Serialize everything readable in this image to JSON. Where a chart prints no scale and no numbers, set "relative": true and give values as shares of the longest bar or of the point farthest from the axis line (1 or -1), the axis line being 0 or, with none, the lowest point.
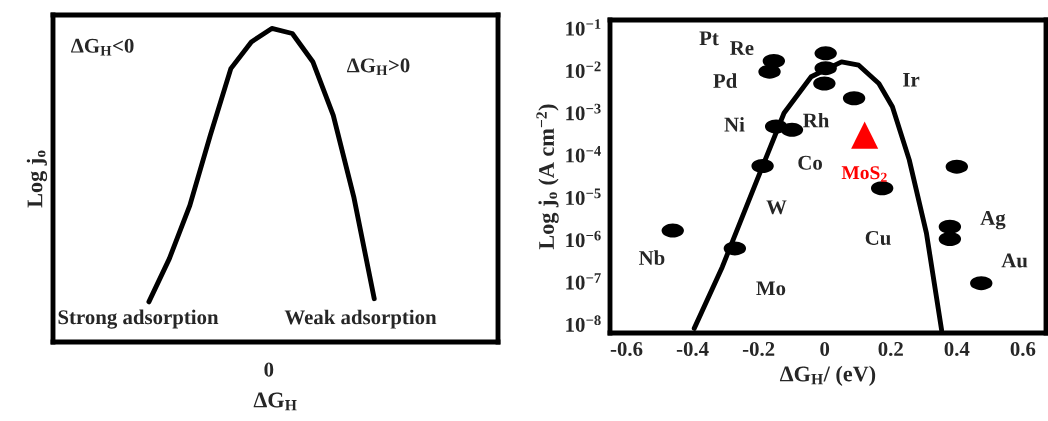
{
  "chart_data": [
    {
      "type": "line",
      "relative": true,
      "xlabel": "ΔG$_{H}$",
      "ylabel": "Log j$_{o}$",
      "categories": [
        null,
        null,
        null,
        null,
        null,
        null,
        null,
        null,
        null,
        null,
        null,
        null
      ],
      "series": [
        {
          "color": "#000000",
          "values": [
            0.128,
            0.266,
            0.436,
            0.66,
            0.872,
            0.957,
            1.0,
            0.984,
            0.894,
            0.723,
            0.463,
            0.138
          ]
        }
      ],
      "annotations": [
        "ΔG$_{H}$<0",
        "ΔG$_{H}$>0",
        "Strong adsorption",
        "Weak adsorption",
        "0"
      ],
      "marker": "none",
      "line_style": "solid",
      "grid": false,
      "legend": false
    },
    {
      "type": "scatter",
      "xlabel": "ΔG$_{H}$/ (eV)",
      "ylabel": "Log j$_{o}$ (A cm$^{−2}$)",
      "log": "y",
      "xlim": [
        -0.65,
        0.67
      ],
      "ylim": [
        6.3e-09,
        0.158
      ],
      "xticks": [
        -0.6,
        -0.4,
        -0.2,
        0,
        0.2,
        0.4,
        0.6
      ],
      "yticks": [
        {
          "value": 1e-08,
          "label": "10$^{−8}$"
        },
        {
          "value": 1e-07,
          "label": "10$^{−7}$"
        },
        {
          "value": 1e-06,
          "label": "10$^{−6}$"
        },
        {
          "value": 1e-05,
          "label": "10$^{−5}$"
        },
        {
          "value": 0.0001,
          "label": "10$^{−4}$"
        },
        {
          "value": 0.001,
          "label": "10$^{−3}$"
        },
        {
          "value": 0.01,
          "label": "10$^{−2}$"
        },
        {
          "value": 0.1,
          "label": "10$^{−1}$"
        }
      ],
      "series": [
        {
          "type": "line",
          "color": "#000000",
          "marker": "none",
          "x": [
            -0.395,
            -0.31,
            -0.205,
            -0.123,
            -0.041,
            0.051,
            0.103,
            0.164,
            0.205,
            0.256,
            0.308,
            0.354
          ],
          "values": [
            8.1e-09,
            2.3e-07,
            2.6e-05,
            0.001,
            0.0072,
            0.0162,
            0.0135,
            0.005,
            0.0014,
            7.8e-05,
            1.45e-06,
            7.4e-09
          ]
        },
        {
          "type": "scatter",
          "color": "#000000",
          "marker": "circle",
          "x": [
            0.003,
            0.003,
            -0.001,
            -0.154,
            -0.167,
            0.089,
            -0.147,
            -0.099,
            -0.188,
            -0.46,
            -0.272,
            0.174,
            0.379,
            0.379,
            0.4,
            0.474
          ],
          "values": [
            0.0257,
            0.0115,
            0.005,
            0.017,
            0.0095,
            0.00224,
            0.00048,
            0.0004,
            5.6e-05,
            1.66e-06,
            6.3e-07,
            1.66e-05,
            2.04e-06,
            1.05e-06,
            5.4e-05,
            9.5e-08
          ]
        },
        {
          "type": "scatter",
          "name": "MoS$_{2}$",
          "color": "#ff0000",
          "marker": "triangle",
          "x": [
            0.121
          ],
          "values": [
            0.0003
          ]
        }
      ],
      "annotations": [
        "Pt",
        {
          "text": "Re",
          "x": -0.154,
          "y": 0.017
        },
        {
          "text": "Pd",
          "x": -0.167,
          "y": 0.0095
        },
        {
          "text": "Rh",
          "x": -0.001,
          "y": 0.005
        },
        {
          "text": "Ir",
          "x": 0.089,
          "y": 0.00224
        },
        {
          "text": "Ni",
          "x": -0.147,
          "y": 0.00048
        },
        {
          "text": "Co",
          "x": -0.099,
          "y": 0.0004
        },
        {
          "text": "W",
          "x": -0.188,
          "y": 5.6e-05
        },
        {
          "text": "Nb",
          "x": -0.46,
          "y": 1.66e-06
        },
        {
          "text": "Mo",
          "x": -0.272,
          "y": 6.3e-07
        },
        {
          "text": "Cu",
          "x": 0.174,
          "y": 1.66e-05
        },
        {
          "text": "Ag",
          "x": 0.379,
          "y": 2.04e-06
        },
        {
          "text": "Au",
          "x": 0.474,
          "y": 9.5e-08
        }
      ],
      "grid": false,
      "legend": false
    }
  ]
}
